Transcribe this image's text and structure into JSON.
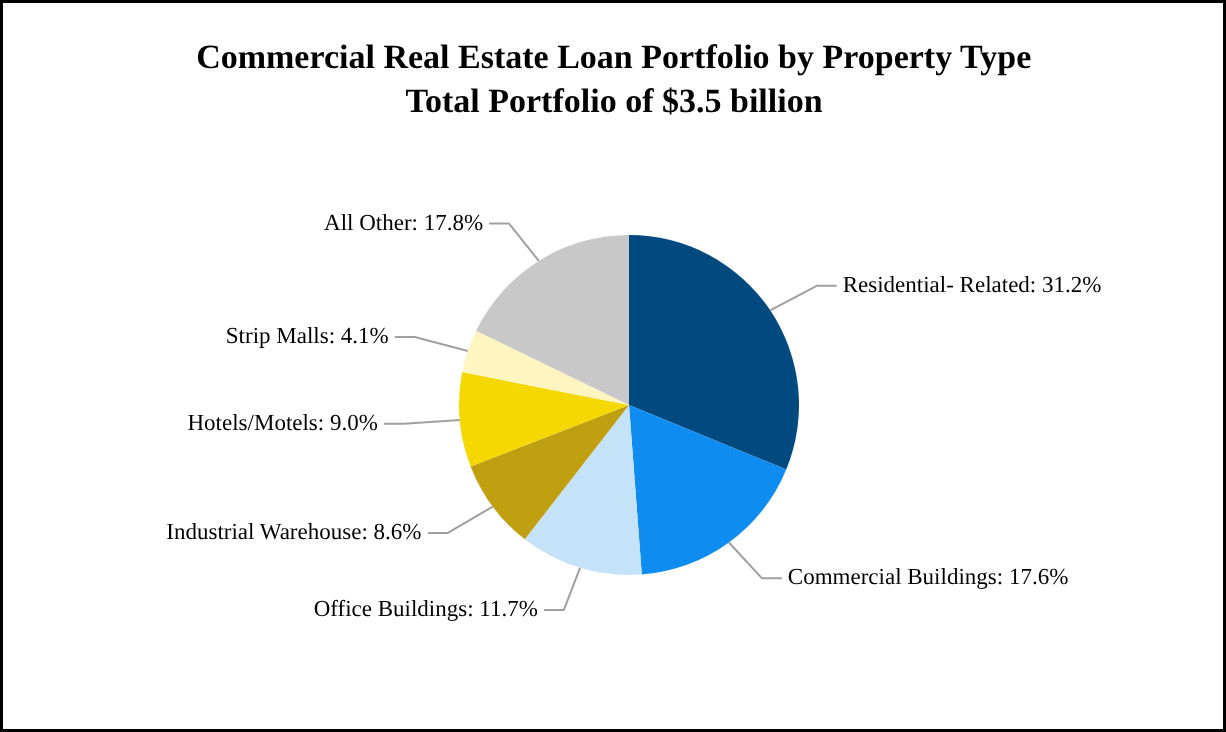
{
  "chart_data": {
    "type": "pie",
    "title": "Commercial Real Estate Loan Portfolio by Property Type",
    "subtitle": "Total Portfolio of $3.5 billion",
    "categories": [
      "Residential- Related",
      "Commercial Buildings",
      "Office Buildings",
      "Industrial Warehouse",
      "Hotels/Motels",
      "Strip Malls",
      "All Other"
    ],
    "value_labels": [
      ": 31.2%",
      ": 17.6%",
      ": 11.7%",
      ": 8.6%",
      ": 9.0%",
      ": 4.1%",
      ": 17.8%"
    ],
    "values": [
      31.2,
      17.6,
      11.7,
      8.6,
      9.0,
      4.1,
      17.8
    ],
    "colors": [
      "#004a80",
      "#0f8cf0",
      "#c5e3f8",
      "#c0a010",
      "#f5d800",
      "#fff5c0",
      "#c8c8c8"
    ]
  }
}
